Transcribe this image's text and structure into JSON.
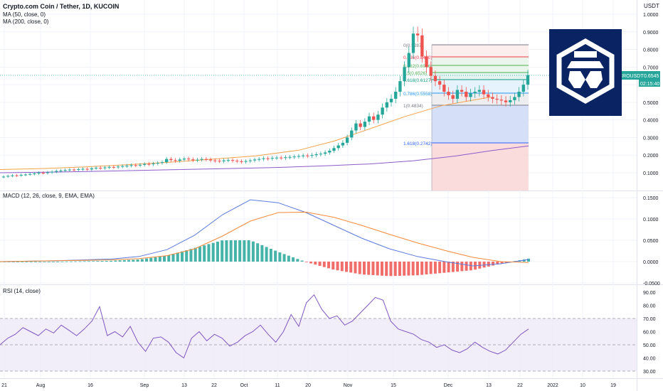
{
  "header": {
    "title": "Crypto.com Coin / Tether, 1D, KUCOIN",
    "ma50_label": "MA (50, close, 0)",
    "ma200_label": "MA (200, close, 0)",
    "currency": "USDT"
  },
  "price_tag": {
    "symbol": "CROUSDT",
    "price": "0.6545",
    "countdown": "02:15:40"
  },
  "panes": {
    "macd_label": "MACD (12, 26, close, 9, EMA, EMA)",
    "rsi_label": "RSI (14, close)"
  },
  "colors": {
    "up": "#26a69a",
    "down": "#ef5350",
    "ma50": "#f5a24a",
    "ma200": "#8e5bc9",
    "macd": "#5b7bdd",
    "signal": "#f58a3a",
    "rsi": "#7e57c2",
    "logo_bg": "#0a2463"
  },
  "fibonacci": [
    {
      "level": "0(0.9287)",
      "color": "#787b86"
    },
    {
      "level": "0.236(0.8420)",
      "color": "#f23645"
    },
    {
      "level": "0.382(0.6936)",
      "color": "#4caf50"
    },
    {
      "level": "0.5(0.6526)",
      "color": "#4caf50"
    },
    {
      "level": "0.618(0.6127)",
      "color": "#089981"
    },
    {
      "level": "0.786(0.5558)",
      "color": "#2196f3"
    },
    {
      "level": "1(0.4834)",
      "color": "#787b86"
    },
    {
      "level": "1.618(0.2742)",
      "color": "#2962ff"
    }
  ],
  "chart_data": [
    {
      "type": "candlestick",
      "title": "Crypto.com Coin / Tether, 1D, KUCOIN",
      "x_ticks": [
        "21",
        "Aug",
        "16",
        "Sep",
        "13",
        "22",
        "Oct",
        "11",
        "20",
        "Nov",
        "15",
        "Dec",
        "13",
        "22",
        "2022",
        "10",
        "19"
      ],
      "y_ticks": [
        "1.0000",
        "0.9000",
        "0.8000",
        "0.7000",
        "0.6000",
        "0.5000",
        "0.4000",
        "0.3000",
        "0.2000",
        "0.1000"
      ],
      "ylim": [
        0.0,
        1.05
      ],
      "series": [
        {
          "name": "MA (50, close, 0)",
          "values": [
            0.118,
            0.124,
            0.133,
            0.146,
            0.16,
            0.178,
            0.196,
            0.228,
            0.28,
            0.35,
            0.42,
            0.48,
            0.53
          ]
        },
        {
          "name": "MA (200, close, 0)",
          "values": [
            0.1,
            0.104,
            0.11,
            0.117,
            0.124,
            0.131,
            0.14,
            0.15,
            0.168,
            0.195,
            0.225,
            0.252
          ]
        }
      ],
      "closes": [
        0.078,
        0.082,
        0.085,
        0.084,
        0.088,
        0.09,
        0.093,
        0.096,
        0.1,
        0.098,
        0.102,
        0.106,
        0.11,
        0.112,
        0.115,
        0.118,
        0.116,
        0.12,
        0.122,
        0.119,
        0.125,
        0.128,
        0.126,
        0.13,
        0.133,
        0.131,
        0.135,
        0.138,
        0.14,
        0.143,
        0.141,
        0.145,
        0.15,
        0.148,
        0.152,
        0.156,
        0.16,
        0.178,
        0.172,
        0.168,
        0.175,
        0.18,
        0.176,
        0.171,
        0.174,
        0.178,
        0.175,
        0.17,
        0.168,
        0.165,
        0.17,
        0.172,
        0.168,
        0.165,
        0.162,
        0.166,
        0.17,
        0.175,
        0.178,
        0.182,
        0.18,
        0.184,
        0.186,
        0.184,
        0.188,
        0.19,
        0.192,
        0.195,
        0.198,
        0.196,
        0.2,
        0.205,
        0.208,
        0.215,
        0.225,
        0.24,
        0.255,
        0.27,
        0.3,
        0.34,
        0.38,
        0.36,
        0.39,
        0.42,
        0.4,
        0.43,
        0.47,
        0.5,
        0.52,
        0.56,
        0.62,
        0.7,
        0.78,
        0.89,
        0.88,
        0.76,
        0.7,
        0.65,
        0.62,
        0.6,
        0.56,
        0.54,
        0.52,
        0.57,
        0.56,
        0.53,
        0.55,
        0.56,
        0.57,
        0.545,
        0.53,
        0.52,
        0.515,
        0.51,
        0.5,
        0.512,
        0.53,
        0.56,
        0.6,
        0.6545
      ]
    },
    {
      "type": "line",
      "title": "MACD (12, 26, close, 9, EMA, EMA)",
      "y_ticks": [
        "0.1500",
        "0.1000",
        "0.0500",
        "0.0000",
        "-0.0500"
      ],
      "ylim": [
        -0.05,
        0.16
      ],
      "series": [
        {
          "name": "MACD",
          "values": [
            0.0,
            0.001,
            0.002,
            0.004,
            0.006,
            0.012,
            0.028,
            0.062,
            0.11,
            0.145,
            0.138,
            0.115,
            0.085,
            0.055,
            0.03,
            0.012,
            0.0,
            -0.01,
            -0.005,
            0.005
          ]
        },
        {
          "name": "Signal",
          "values": [
            0.0,
            0.001,
            0.002,
            0.003,
            0.004,
            0.007,
            0.014,
            0.03,
            0.06,
            0.095,
            0.115,
            0.116,
            0.104,
            0.085,
            0.064,
            0.044,
            0.026,
            0.01,
            0.0,
            -0.002
          ]
        }
      ]
    },
    {
      "type": "line",
      "title": "RSI (14, close)",
      "y_ticks": [
        "90.00",
        "80.00",
        "70.00",
        "60.00",
        "50.00",
        "40.00",
        "30.00"
      ],
      "ylim": [
        28,
        92
      ],
      "series": [
        {
          "name": "RSI",
          "values": [
            50,
            55,
            58,
            63,
            60,
            57,
            62,
            59,
            65,
            61,
            57,
            62,
            68,
            79,
            57,
            60,
            56,
            64,
            52,
            45,
            55,
            56,
            52,
            44,
            40,
            55,
            60,
            53,
            58,
            55,
            49,
            52,
            57,
            60,
            65,
            58,
            52,
            60,
            73,
            64,
            82,
            88,
            77,
            70,
            72,
            65,
            68,
            74,
            80,
            86,
            84,
            68,
            62,
            60,
            58,
            54,
            52,
            48,
            50,
            46,
            44,
            47,
            52,
            48,
            45,
            43,
            46,
            52,
            58,
            62
          ]
        }
      ]
    }
  ]
}
